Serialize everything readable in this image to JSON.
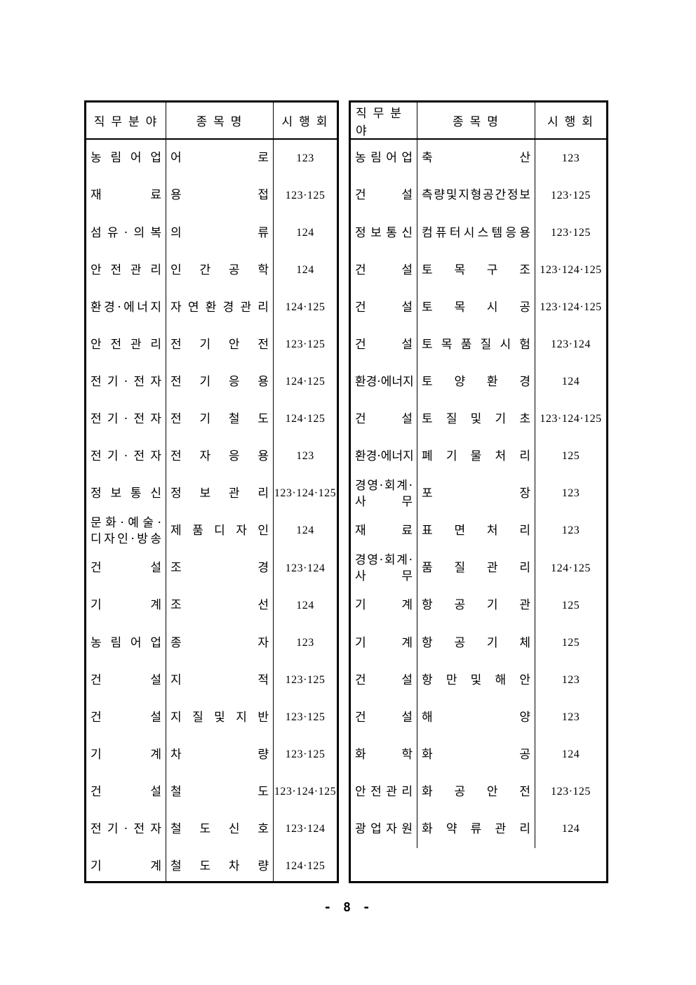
{
  "page": {
    "number_label": "- 8 -"
  },
  "tables": [
    {
      "headers": {
        "field": "직무분야",
        "name": "종목명",
        "session": "시행회"
      },
      "rows": [
        {
          "field": "농림어업",
          "name": "어로",
          "sessions": "123"
        },
        {
          "field": "재료",
          "name": "용접",
          "sessions": "123·125"
        },
        {
          "field": "섬유·의복",
          "name": "의류",
          "sessions": "124"
        },
        {
          "field": "안전관리",
          "name": "인간공학",
          "sessions": "124"
        },
        {
          "field": "환경·에너지",
          "name": "자연환경관리",
          "sessions": "124·125"
        },
        {
          "field": "안전관리",
          "name": "전기안전",
          "sessions": "123·125"
        },
        {
          "field": "전기·전자",
          "name": "전기응용",
          "sessions": "124·125"
        },
        {
          "field": "전기·전자",
          "name": "전기철도",
          "sessions": "124·125"
        },
        {
          "field": "전기·전자",
          "name": "전자응용",
          "sessions": "123"
        },
        {
          "field": "정보통신",
          "name": "정보관리",
          "sessions": "123·124·125"
        },
        {
          "field": "문화·예술·\n디자인·방송",
          "name": "제품디자인",
          "sessions": "124"
        },
        {
          "field": "건설",
          "name": "조경",
          "sessions": "123·124"
        },
        {
          "field": "기계",
          "name": "조선",
          "sessions": "124"
        },
        {
          "field": "농림어업",
          "name": "종자",
          "sessions": "123"
        },
        {
          "field": "건설",
          "name": "지적",
          "sessions": "123·125"
        },
        {
          "field": "건설",
          "name": "지질및지반",
          "sessions": "123·125"
        },
        {
          "field": "기계",
          "name": "차량",
          "sessions": "123·125"
        },
        {
          "field": "건설",
          "name": "철도",
          "sessions": "123·124·125"
        },
        {
          "field": "전기·전자",
          "name": "철도신호",
          "sessions": "123·124"
        },
        {
          "field": "기계",
          "name": "철도차량",
          "sessions": "124·125"
        }
      ]
    },
    {
      "headers": {
        "field": "직무분야",
        "name": "종목명",
        "session": "시행회"
      },
      "rows": [
        {
          "field": "농림어업",
          "name": "축산",
          "sessions": "123"
        },
        {
          "field": "건설",
          "name": "측량및지형공간정보",
          "sessions": "123·125"
        },
        {
          "field": "정보통신",
          "name": "컴퓨터시스템응용",
          "sessions": "123·125"
        },
        {
          "field": "건설",
          "name": "토목구조",
          "sessions": "123·124·125"
        },
        {
          "field": "건설",
          "name": "토목시공",
          "sessions": "123·124·125"
        },
        {
          "field": "건설",
          "name": "토목품질시험",
          "sessions": "123·124"
        },
        {
          "field": "환경·에너지",
          "name": "토양환경",
          "sessions": "124"
        },
        {
          "field": "건설",
          "name": "토질및기초",
          "sessions": "123·124·125"
        },
        {
          "field": "환경·에너지",
          "name": "폐기물처리",
          "sessions": "125"
        },
        {
          "field": "경영·회계·\n사무",
          "name": "포장",
          "sessions": "123"
        },
        {
          "field": "재료",
          "name": "표면처리",
          "sessions": "123"
        },
        {
          "field": "경영·회계·\n사무",
          "name": "품질관리",
          "sessions": "124·125"
        },
        {
          "field": "기계",
          "name": "항공기관",
          "sessions": "125"
        },
        {
          "field": "기계",
          "name": "항공기체",
          "sessions": "125"
        },
        {
          "field": "건설",
          "name": "항만및해안",
          "sessions": "123"
        },
        {
          "field": "건설",
          "name": "해양",
          "sessions": "123"
        },
        {
          "field": "화학",
          "name": "화공",
          "sessions": "124"
        },
        {
          "field": "안전관리",
          "name": "화공안전",
          "sessions": "123·125"
        },
        {
          "field": "광업자원",
          "name": "화약류관리",
          "sessions": "124"
        }
      ]
    }
  ]
}
